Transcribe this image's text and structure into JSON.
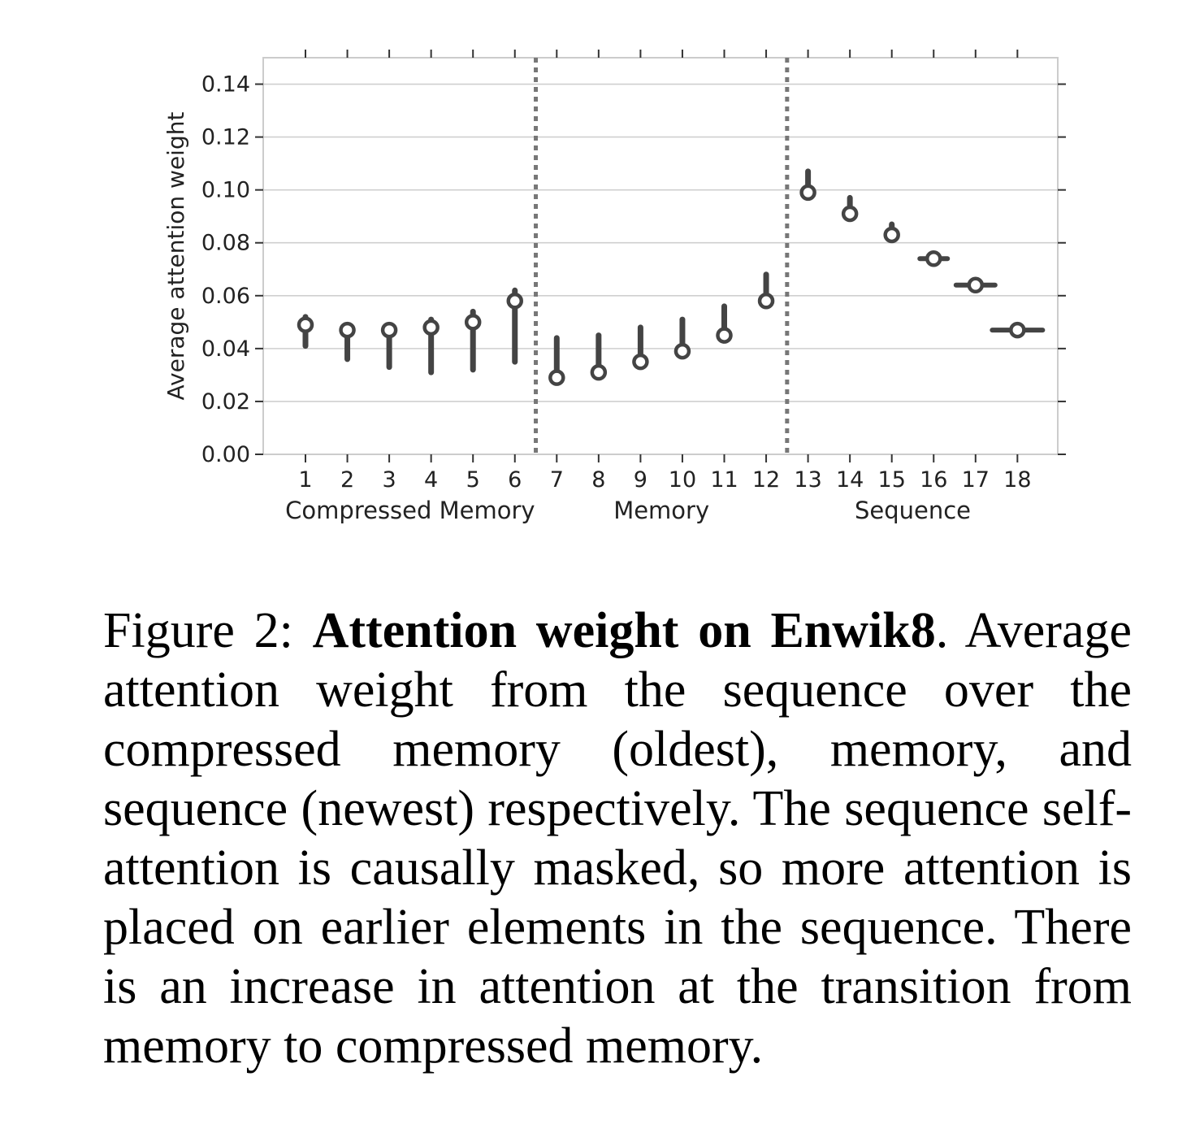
{
  "chart_data": {
    "type": "point_range",
    "title": "",
    "ylabel": "Average attention weight",
    "xlabel": "",
    "ylim": [
      0,
      0.15
    ],
    "y_ticks": [
      "0.00",
      "0.02",
      "0.04",
      "0.06",
      "0.08",
      "0.10",
      "0.12",
      "0.14"
    ],
    "y_tick_values": [
      0,
      0.02,
      0.04,
      0.06,
      0.08,
      0.1,
      0.12,
      0.14
    ],
    "grid": true,
    "categories": [
      "1",
      "2",
      "3",
      "4",
      "5",
      "6",
      "7",
      "8",
      "9",
      "10",
      "11",
      "12",
      "13",
      "14",
      "15",
      "16",
      "17",
      "18"
    ],
    "points": [
      {
        "x": "1",
        "value": 0.049,
        "low": 0.041,
        "high": 0.052
      },
      {
        "x": "2",
        "value": 0.047,
        "low": 0.036,
        "high": 0.049
      },
      {
        "x": "3",
        "value": 0.047,
        "low": 0.033,
        "high": 0.049
      },
      {
        "x": "4",
        "value": 0.048,
        "low": 0.031,
        "high": 0.051
      },
      {
        "x": "5",
        "value": 0.05,
        "low": 0.032,
        "high": 0.054
      },
      {
        "x": "6",
        "value": 0.058,
        "low": 0.035,
        "high": 0.062
      },
      {
        "x": "7",
        "value": 0.029,
        "low": 0.028,
        "high": 0.044
      },
      {
        "x": "8",
        "value": 0.031,
        "low": 0.03,
        "high": 0.045
      },
      {
        "x": "9",
        "value": 0.035,
        "low": 0.034,
        "high": 0.048
      },
      {
        "x": "10",
        "value": 0.039,
        "low": 0.038,
        "high": 0.051
      },
      {
        "x": "11",
        "value": 0.045,
        "low": 0.044,
        "high": 0.056
      },
      {
        "x": "12",
        "value": 0.058,
        "low": 0.057,
        "high": 0.068
      },
      {
        "x": "13",
        "value": 0.099,
        "low": 0.098,
        "high": 0.107
      },
      {
        "x": "14",
        "value": 0.091,
        "low": 0.09,
        "high": 0.097
      },
      {
        "x": "15",
        "value": 0.083,
        "low": 0.082,
        "high": 0.087
      },
      {
        "x": "16",
        "value": 0.074,
        "low": 0.074,
        "high": 0.075
      },
      {
        "x": "17",
        "value": 0.064,
        "low": 0.063,
        "high": 0.064
      },
      {
        "x": "18",
        "value": 0.047,
        "low": 0.046,
        "high": 0.047
      }
    ],
    "dividers_after": [
      "6",
      "12"
    ],
    "groups": [
      {
        "label": "Compressed Memory",
        "from": "1",
        "to": "6"
      },
      {
        "label": "Memory",
        "from": "7",
        "to": "12"
      },
      {
        "label": "Sequence",
        "from": "13",
        "to": "18"
      }
    ],
    "colors": {
      "marks": "#444444",
      "grid": "#cfcfcf",
      "divider": "#777777",
      "frame": "#cccccc"
    }
  },
  "caption": {
    "prefix": "Figure 2: ",
    "bold": "Attention weight on Enwik8",
    "text": ". Av­erage attention weight from the sequence over the compressed memory (oldest), memory, and sequence (newest) respectively. The sequence self-attention is causally masked, so more at­tention is placed on earlier elements in the se­quence. There is an increase in attention at the transition from memory to compressed memory."
  }
}
